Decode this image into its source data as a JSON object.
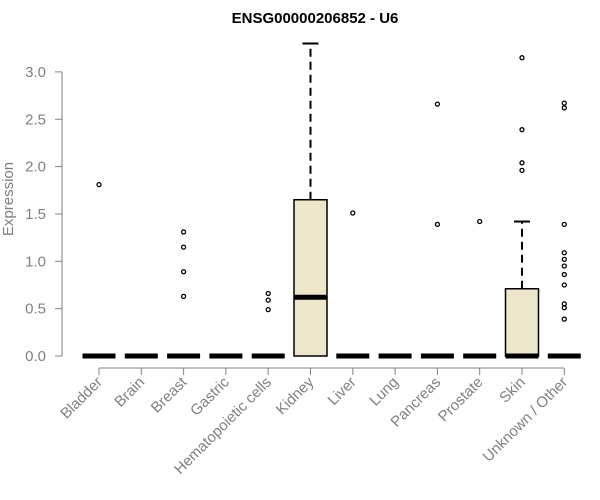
{
  "chart_data": {
    "type": "boxplot",
    "title": "ENSG00000206852 - U6",
    "xlabel": "",
    "ylabel": "Expression",
    "ylim": [
      0,
      3.3
    ],
    "yticks": [
      "0.0",
      "0.5",
      "1.0",
      "1.5",
      "2.0",
      "2.5",
      "3.0"
    ],
    "grid": false,
    "legend": "none",
    "colors": {
      "box_fill": "#ede6cb",
      "line": "#000000",
      "axis_text": "#808080"
    },
    "categories": [
      "Bladder",
      "Brain",
      "Breast",
      "Gastric",
      "Hematopoietic cells",
      "Kidney",
      "Liver",
      "Lung",
      "Pancreas",
      "Prostate",
      "Skin",
      "Unknown / Other"
    ],
    "boxes": [
      {
        "category": "Bladder",
        "q1": 0,
        "median": 0,
        "q3": 0,
        "whisker_low": 0,
        "whisker_high": 0,
        "outliers": [
          1.81
        ]
      },
      {
        "category": "Brain",
        "q1": 0,
        "median": 0,
        "q3": 0,
        "whisker_low": 0,
        "whisker_high": 0,
        "outliers": []
      },
      {
        "category": "Breast",
        "q1": 0,
        "median": 0,
        "q3": 0,
        "whisker_low": 0,
        "whisker_high": 0,
        "outliers": [
          0.63,
          0.89,
          1.15,
          1.31
        ]
      },
      {
        "category": "Gastric",
        "q1": 0,
        "median": 0,
        "q3": 0,
        "whisker_low": 0,
        "whisker_high": 0,
        "outliers": []
      },
      {
        "category": "Hematopoietic cells",
        "q1": 0,
        "median": 0,
        "q3": 0,
        "whisker_low": 0,
        "whisker_high": 0,
        "outliers": [
          0.49,
          0.59,
          0.66
        ]
      },
      {
        "category": "Kidney",
        "q1": 0,
        "median": 0.62,
        "q3": 1.65,
        "whisker_low": 0,
        "whisker_high": 3.3,
        "outliers": []
      },
      {
        "category": "Liver",
        "q1": 0,
        "median": 0,
        "q3": 0,
        "whisker_low": 0,
        "whisker_high": 0,
        "outliers": [
          1.51
        ]
      },
      {
        "category": "Lung",
        "q1": 0,
        "median": 0,
        "q3": 0,
        "whisker_low": 0,
        "whisker_high": 0,
        "outliers": []
      },
      {
        "category": "Pancreas",
        "q1": 0,
        "median": 0,
        "q3": 0,
        "whisker_low": 0,
        "whisker_high": 0,
        "outliers": [
          1.39,
          2.66
        ]
      },
      {
        "category": "Prostate",
        "q1": 0,
        "median": 0,
        "q3": 0,
        "whisker_low": 0,
        "whisker_high": 0,
        "outliers": [
          1.42
        ]
      },
      {
        "category": "Skin",
        "q1": 0,
        "median": 0,
        "q3": 0.71,
        "whisker_low": 0,
        "whisker_high": 1.42,
        "outliers": [
          1.96,
          2.04,
          2.39,
          3.15
        ]
      },
      {
        "category": "Unknown / Other",
        "q1": 0,
        "median": 0,
        "q3": 0,
        "whisker_low": 0,
        "whisker_high": 0,
        "outliers": [
          0.39,
          0.51,
          0.55,
          0.75,
          0.86,
          0.95,
          1.02,
          1.09,
          1.39,
          2.62,
          2.67
        ]
      }
    ]
  }
}
